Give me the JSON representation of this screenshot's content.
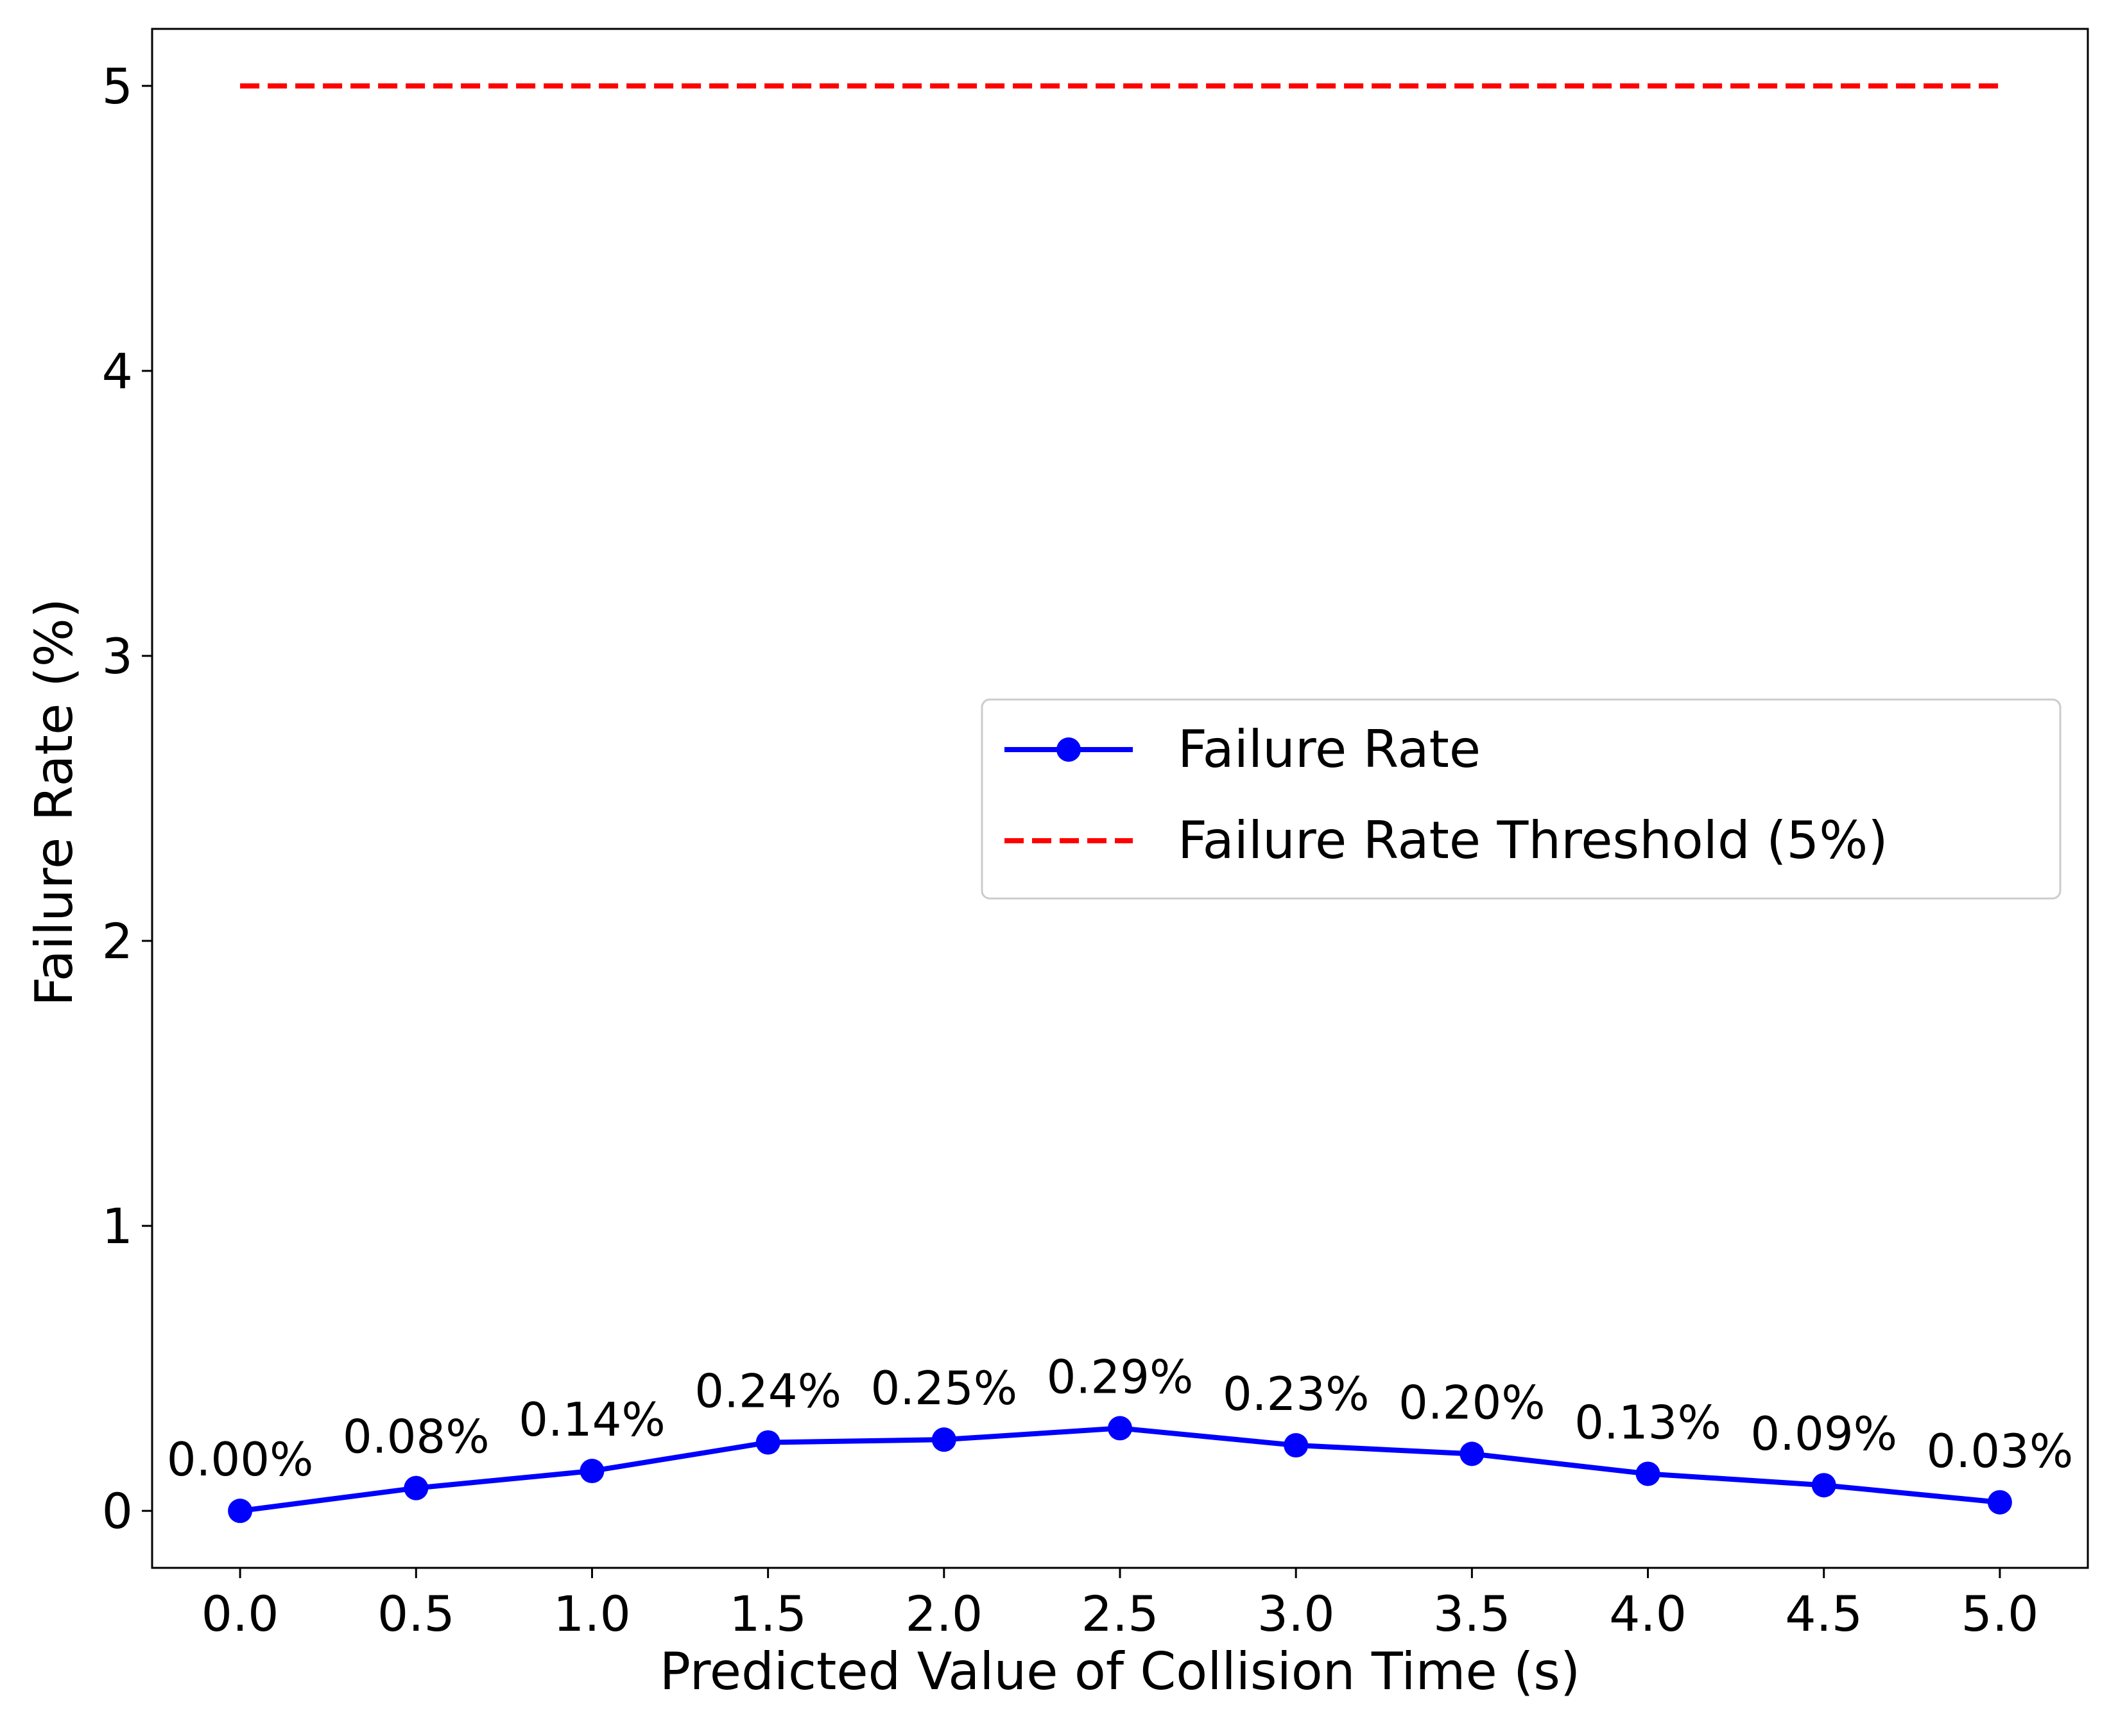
{
  "chart_data": {
    "type": "line",
    "xlabel": "Predicted Value of Collision Time (s)",
    "ylabel": "Failure Rate (%)",
    "x": [
      0.0,
      0.5,
      1.0,
      1.5,
      2.0,
      2.5,
      3.0,
      3.5,
      4.0,
      4.5,
      5.0
    ],
    "x_tick_labels": [
      "0.0",
      "0.5",
      "1.0",
      "1.5",
      "2.0",
      "2.5",
      "3.0",
      "3.5",
      "4.0",
      "4.5",
      "5.0"
    ],
    "y_ticks": [
      0,
      1,
      2,
      3,
      4,
      5
    ],
    "y_tick_labels": [
      "0",
      "1",
      "2",
      "3",
      "4",
      "5"
    ],
    "xlim": [
      -0.25,
      5.25
    ],
    "ylim": [
      -0.2,
      5.2
    ],
    "grid": false,
    "legend_position": "center-right",
    "series": [
      {
        "name": "Failure Rate",
        "style": "solid line with circle markers",
        "color": "#0000ff",
        "values": [
          0.0,
          0.08,
          0.14,
          0.24,
          0.25,
          0.29,
          0.23,
          0.2,
          0.13,
          0.09,
          0.03
        ],
        "data_labels": [
          "0.00%",
          "0.08%",
          "0.14%",
          "0.24%",
          "0.25%",
          "0.29%",
          "0.23%",
          "0.20%",
          "0.13%",
          "0.09%",
          "0.03%"
        ]
      },
      {
        "name": "Failure Rate Threshold (5%)",
        "style": "dashed line",
        "color": "#ff0000",
        "x_range": [
          0.0,
          5.0
        ],
        "value": 5
      }
    ]
  }
}
